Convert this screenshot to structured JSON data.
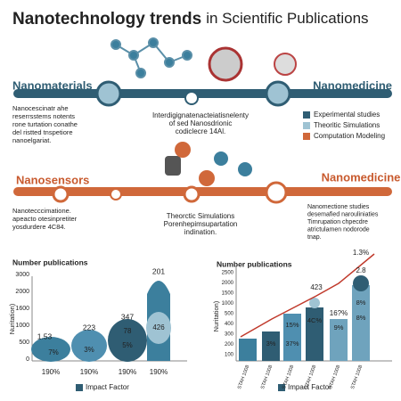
{
  "header": {
    "title_bold": "Nanotechnology trends",
    "title_rest": "in Scientific Publications"
  },
  "top": {
    "left_label": "Nanomaterials",
    "right_label": "Nanomedicine",
    "left_text": [
      "Nanocescinatr ahe",
      "reserrsstems notents",
      "rone turtation conathe",
      "del ristted tnspetiore",
      "nanoelgariat."
    ],
    "center_text": [
      "Interdigignatenacteiatisnelenty",
      "of sed Nanosdrionic",
      "codiclecre 14Al."
    ]
  },
  "legend": [
    "Experimental studies",
    "Theoritic Simulations",
    "Computation Modeling"
  ],
  "middle": {
    "left_label": "Nanosensors",
    "right_label": "Nanomedicine",
    "left_text": [
      "Nanotecccimatione.",
      "apeacto otesinpretiter",
      "yosdurdere 4C84."
    ],
    "center_text": [
      "Theorctic Simulations",
      "Porenhepimsupartation",
      "indination."
    ],
    "right_text": [
      "Nanomectione studies",
      "desemafied narouliniaties",
      "Tirnrupation chpecdre",
      "atrictulamen nodorode",
      "tnap."
    ]
  },
  "left_chart": {
    "title": "Number publications",
    "axis_label": "Nuritation)",
    "yticks": [
      "3000",
      "2000",
      "1600",
      "1000",
      "500",
      "0"
    ],
    "top_labels": [
      "1.53",
      "223",
      "347",
      "201"
    ],
    "inner_labels": [
      "7%",
      "3%",
      "78",
      "5%",
      "426"
    ],
    "x_labels": [
      "190%",
      "190%",
      "190%",
      "190%"
    ],
    "legend": "Impact Factor"
  },
  "right_chart": {
    "title": "Number publications",
    "axis_label": "Nuritation)",
    "yticks": [
      "2500",
      "2000",
      "1500",
      "1000",
      "500",
      "400",
      "300",
      "200",
      "100"
    ],
    "top_labels": [
      "423",
      "16?%",
      "1.3%",
      "2.8"
    ],
    "inner_labels": [
      "3%",
      "15%",
      "37%",
      "4C%",
      "9%",
      "8%",
      "8%"
    ],
    "x_labels": [
      "STAH 1008",
      "STAH 1008",
      "STAH 1008",
      "STAH 1008",
      "STAH 1008",
      "STAH 1008"
    ],
    "legend": "Impact Factor"
  }
}
